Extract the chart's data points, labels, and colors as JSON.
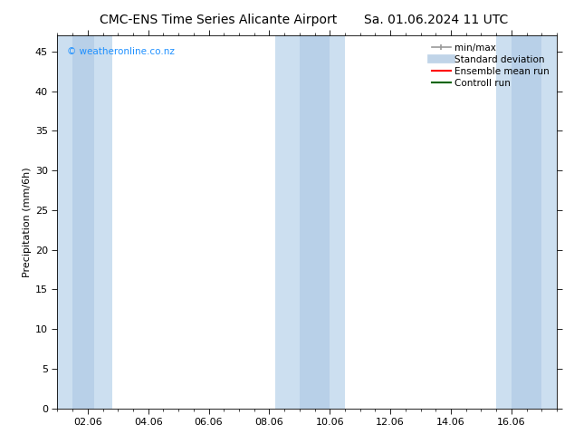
{
  "title_left": "CMC-ENS Time Series Alicante Airport",
  "title_right": "Sa. 01.06.2024 11 UTC",
  "ylabel": "Precipitation (mm/6h)",
  "ylim_bottom": 0,
  "ylim_top": 47,
  "yticks": [
    0,
    5,
    10,
    15,
    20,
    25,
    30,
    35,
    40,
    45
  ],
  "xtick_labels": [
    "02.06",
    "04.06",
    "06.06",
    "08.06",
    "10.06",
    "12.06",
    "14.06",
    "16.06"
  ],
  "xtick_positions": [
    1,
    3,
    5,
    7,
    9,
    11,
    13,
    15
  ],
  "xlim_left": 0,
  "xlim_right": 16.5,
  "shaded_bands": [
    {
      "x_start": 0.0,
      "x_end": 1.8
    },
    {
      "x_start": 7.2,
      "x_end": 9.5
    },
    {
      "x_start": 14.5,
      "x_end": 16.5
    }
  ],
  "inner_bands": [
    {
      "x_start": 0.5,
      "x_end": 1.2
    },
    {
      "x_start": 8.0,
      "x_end": 9.0
    },
    {
      "x_start": 15.0,
      "x_end": 16.0
    }
  ],
  "shade_color": "#ccdff0",
  "shade_color_inner": "#b8d0e8",
  "background_color": "#ffffff",
  "watermark_text": "© weatheronline.co.nz",
  "watermark_color": "#1e90ff",
  "title_fontsize": 10,
  "tick_fontsize": 8,
  "ylabel_fontsize": 8,
  "legend_fontsize": 7.5,
  "minmax_color": "#999999",
  "stddev_color": "#c0d4e8",
  "ensemble_color": "#ff0000",
  "control_color": "#006400"
}
